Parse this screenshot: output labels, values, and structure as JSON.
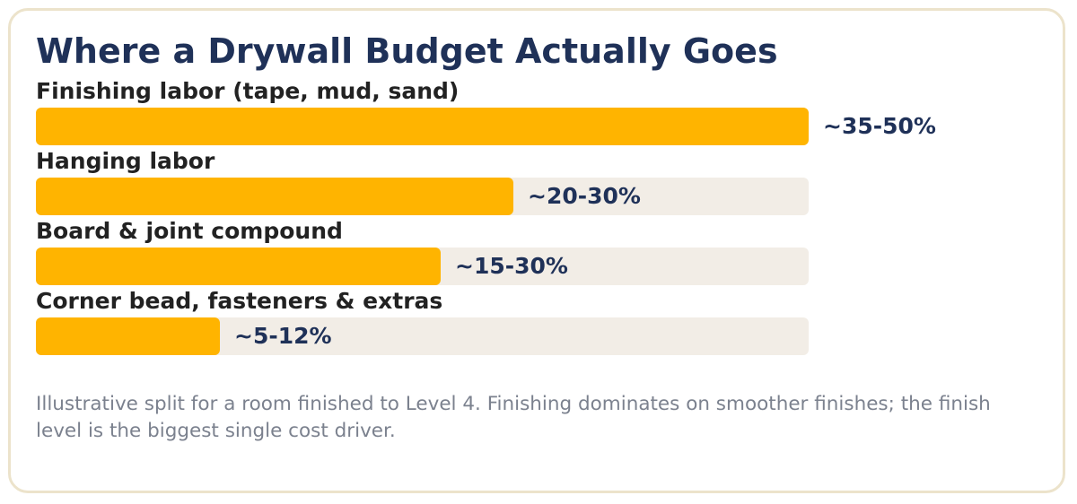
{
  "title": "Where a Drywall Budget Actually Goes",
  "chart_data": {
    "type": "bar",
    "orientation": "horizontal",
    "title": "Where a Drywall Budget Actually Goes",
    "categories": [
      "Finishing labor (tape, mud, sand)",
      "Hanging labor",
      "Board & joint compound",
      "Corner bead, fasteners & extras"
    ],
    "value_labels": [
      "~35-50%",
      "~20-30%",
      "~15-30%",
      "~5-12%"
    ],
    "values": [
      50,
      30.9,
      26.2,
      11.9
    ],
    "xlim": [
      0,
      50
    ],
    "grid": false,
    "legend": "none",
    "bar_color": "#ffb400",
    "track_color": "#f2ede6"
  },
  "footnote": "Illustrative split for a room finished to Level 4. Finishing dominates on smoother finishes; the finish level is the biggest single cost driver."
}
